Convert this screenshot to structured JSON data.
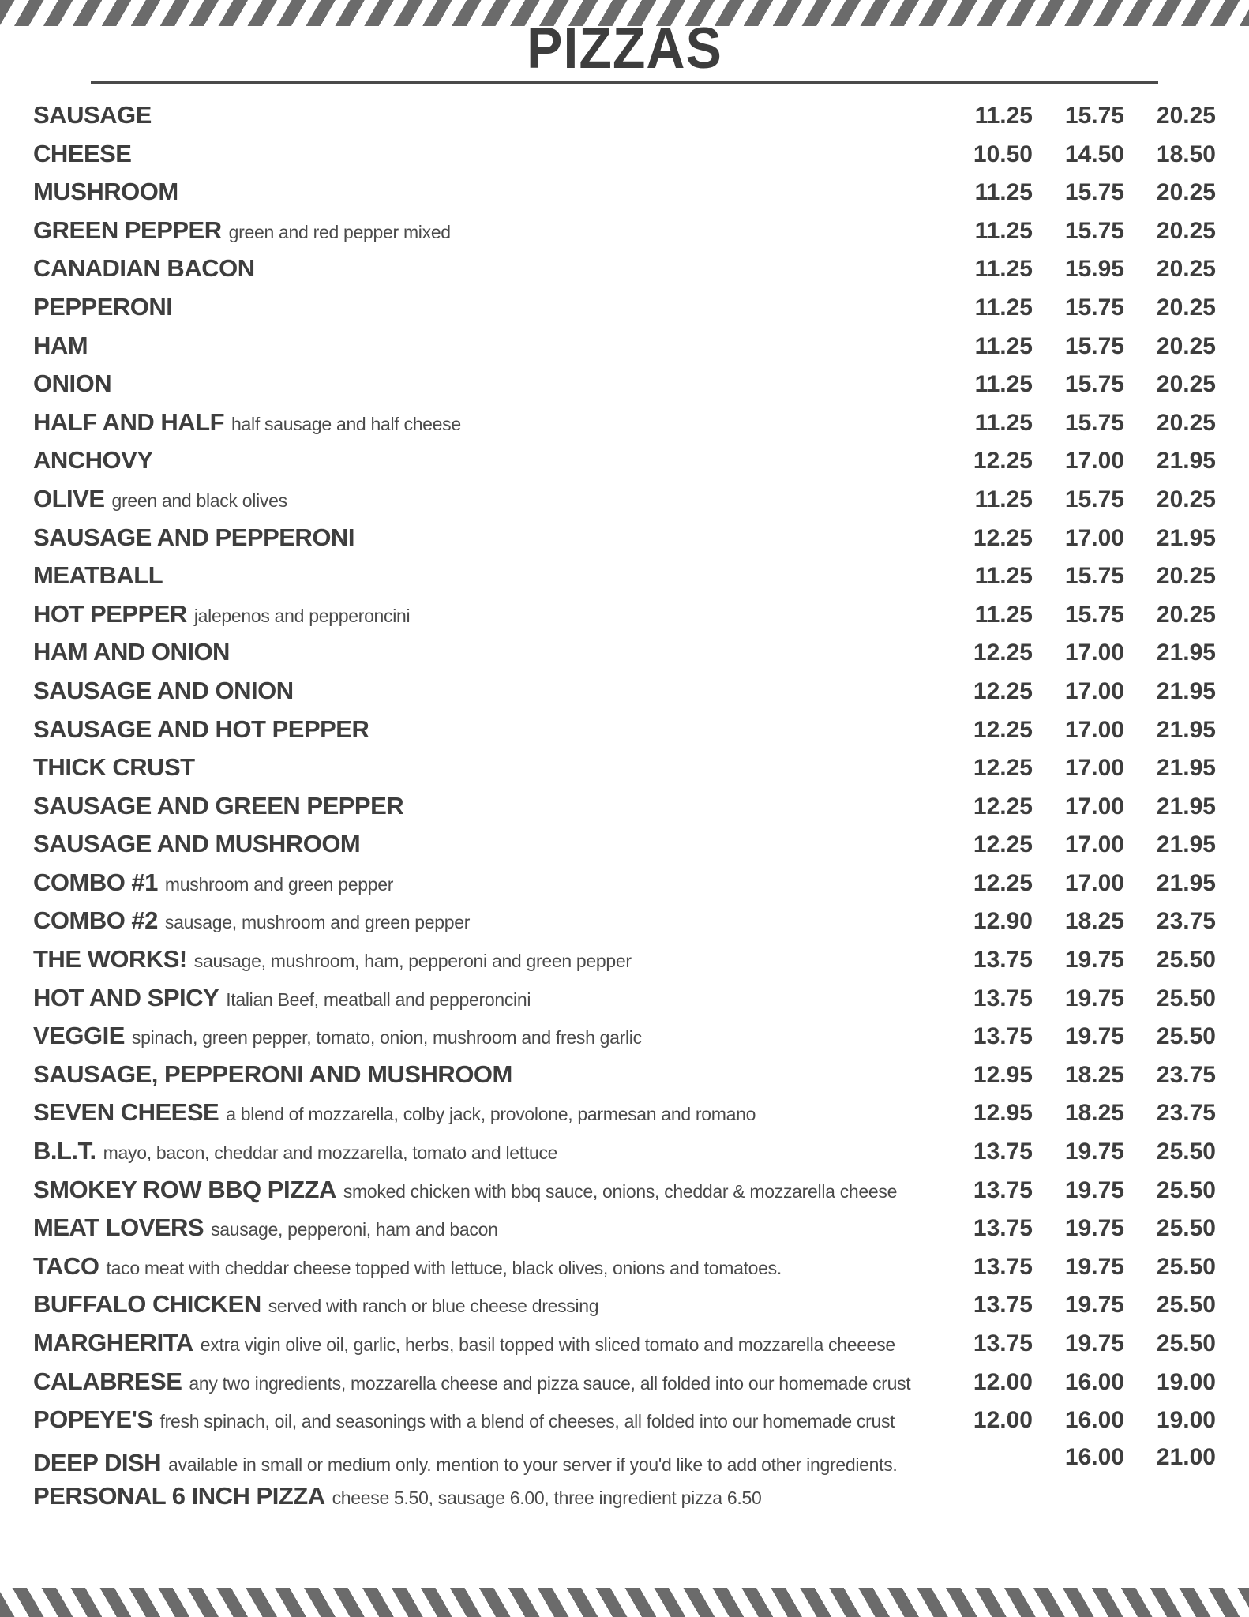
{
  "page": {
    "title": "PIZZAS",
    "stripe_color": "#6b6b6b",
    "text_color": "#3e3e3e",
    "rule_color": "#4a4a4a"
  },
  "menu": {
    "items": [
      {
        "name": "SAUSAGE",
        "desc": "",
        "prices": [
          "11.25",
          "15.75",
          "20.25"
        ]
      },
      {
        "name": "CHEESE",
        "desc": "",
        "prices": [
          "10.50",
          "14.50",
          "18.50"
        ]
      },
      {
        "name": "MUSHROOM",
        "desc": "",
        "prices": [
          "11.25",
          "15.75",
          "20.25"
        ]
      },
      {
        "name": "GREEN PEPPER",
        "desc": "green and red pepper mixed",
        "prices": [
          "11.25",
          "15.75",
          "20.25"
        ]
      },
      {
        "name": "CANADIAN BACON",
        "desc": "",
        "prices": [
          "11.25",
          "15.95",
          "20.25"
        ]
      },
      {
        "name": "PEPPERONI",
        "desc": "",
        "prices": [
          "11.25",
          "15.75",
          "20.25"
        ]
      },
      {
        "name": "HAM",
        "desc": "",
        "prices": [
          "11.25",
          "15.75",
          "20.25"
        ]
      },
      {
        "name": "ONION",
        "desc": "",
        "prices": [
          "11.25",
          "15.75",
          "20.25"
        ]
      },
      {
        "name": "HALF AND HALF",
        "desc": "half sausage and half cheese",
        "prices": [
          "11.25",
          "15.75",
          "20.25"
        ]
      },
      {
        "name": "ANCHOVY",
        "desc": "",
        "prices": [
          "12.25",
          "17.00",
          "21.95"
        ]
      },
      {
        "name": "OLIVE",
        "desc": "green and black olives",
        "prices": [
          "11.25",
          "15.75",
          "20.25"
        ]
      },
      {
        "name": "SAUSAGE AND PEPPERONI",
        "desc": "",
        "prices": [
          "12.25",
          "17.00",
          "21.95"
        ]
      },
      {
        "name": "MEATBALL",
        "desc": "",
        "prices": [
          "11.25",
          "15.75",
          "20.25"
        ]
      },
      {
        "name": "HOT PEPPER",
        "desc": "jalepenos and pepperoncini",
        "prices": [
          "11.25",
          "15.75",
          "20.25"
        ]
      },
      {
        "name": "HAM AND ONION",
        "desc": "",
        "prices": [
          "12.25",
          "17.00",
          "21.95"
        ]
      },
      {
        "name": "SAUSAGE AND ONION",
        "desc": "",
        "prices": [
          "12.25",
          "17.00",
          "21.95"
        ]
      },
      {
        "name": "SAUSAGE AND HOT PEPPER",
        "desc": "",
        "prices": [
          "12.25",
          "17.00",
          "21.95"
        ]
      },
      {
        "name": "THICK CRUST",
        "desc": "",
        "prices": [
          "12.25",
          "17.00",
          "21.95"
        ]
      },
      {
        "name": "SAUSAGE AND GREEN PEPPER",
        "desc": "",
        "prices": [
          "12.25",
          "17.00",
          "21.95"
        ]
      },
      {
        "name": "SAUSAGE AND MUSHROOM",
        "desc": "",
        "prices": [
          "12.25",
          "17.00",
          "21.95"
        ]
      },
      {
        "name": "COMBO #1",
        "desc": "mushroom and green pepper",
        "prices": [
          "12.25",
          "17.00",
          "21.95"
        ]
      },
      {
        "name": "COMBO #2",
        "desc": "sausage, mushroom and green pepper",
        "prices": [
          "12.90",
          "18.25",
          "23.75"
        ]
      },
      {
        "name": "THE WORKS!",
        "desc": "sausage, mushroom, ham, pepperoni and green pepper",
        "prices": [
          "13.75",
          "19.75",
          "25.50"
        ]
      },
      {
        "name": "HOT AND SPICY",
        "desc": "Italian Beef, meatball and pepperoncini",
        "prices": [
          "13.75",
          "19.75",
          "25.50"
        ]
      },
      {
        "name": "VEGGIE",
        "desc": "spinach, green pepper, tomato, onion, mushroom and fresh garlic",
        "prices": [
          "13.75",
          "19.75",
          "25.50"
        ]
      },
      {
        "name": "SAUSAGE,  PEPPERONI AND MUSHROOM",
        "desc": "",
        "prices": [
          "12.95",
          "18.25",
          "23.75"
        ]
      },
      {
        "name": "SEVEN CHEESE",
        "desc": "a blend of mozzarella, colby jack, provolone, parmesan and romano",
        "prices": [
          "12.95",
          "18.25",
          "23.75"
        ]
      },
      {
        "name": "B.L.T.",
        "desc": "mayo, bacon, cheddar and mozzarella, tomato and lettuce",
        "prices": [
          "13.75",
          "19.75",
          "25.50"
        ]
      },
      {
        "name": "SMOKEY ROW BBQ PIZZA",
        "desc": "smoked chicken with bbq sauce, onions, cheddar & mozzarella cheese",
        "prices": [
          "13.75",
          "19.75",
          "25.50"
        ]
      },
      {
        "name": "MEAT LOVERS",
        "desc": "sausage, pepperoni, ham and bacon",
        "prices": [
          "13.75",
          "19.75",
          "25.50"
        ]
      },
      {
        "name": "TACO",
        "desc": "taco meat with cheddar cheese topped with lettuce, black olives, onions and tomatoes.",
        "prices": [
          "13.75",
          "19.75",
          "25.50"
        ]
      },
      {
        "name": "BUFFALO CHICKEN",
        "desc": "served with ranch or blue cheese dressing",
        "prices": [
          "13.75",
          "19.75",
          "25.50"
        ]
      },
      {
        "name": "MARGHERITA",
        "desc": "extra vigin olive oil, garlic, herbs, basil topped with sliced tomato and mozzarella cheeese",
        "prices": [
          "13.75",
          "19.75",
          "25.50"
        ]
      },
      {
        "name": "CALABRESE",
        "desc": "any two ingredients, mozzarella cheese and pizza sauce, all folded into our homemade crust",
        "prices": [
          "12.00",
          "16.00",
          "19.00"
        ]
      },
      {
        "name": "POPEYE'S",
        "desc": "fresh spinach, oil, and seasonings with a blend of cheeses, all folded into our homemade crust",
        "prices": [
          "12.00",
          "16.00",
          "19.00"
        ]
      },
      {
        "name": "DEEP DISH",
        "desc": "available in small or medium only. mention to your server if you'd like to add other ingredients.",
        "prices": [
          "",
          "16.00",
          "21.00"
        ]
      },
      {
        "name": "PERSONAL 6 INCH PIZZA",
        "desc": "cheese 5.50, sausage 6.00, three ingredient pizza 6.50",
        "prices": [
          "",
          "",
          ""
        ]
      }
    ]
  }
}
